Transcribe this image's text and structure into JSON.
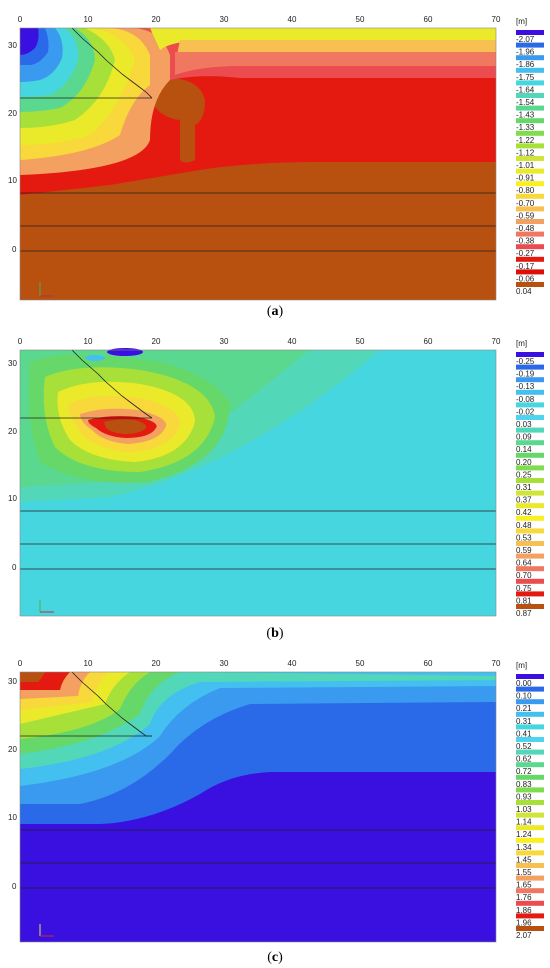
{
  "x_ticks": [
    "0",
    "10",
    "20",
    "30",
    "40",
    "50",
    "60",
    "70"
  ],
  "y_ticks": [
    "30",
    "20",
    "10",
    "0"
  ],
  "legend_unit": "[m]",
  "panels": [
    {
      "id": "a",
      "caption": "a",
      "legend_values": [
        "-2.07",
        "-1.96",
        "-1.86",
        "-1.75",
        "-1.64",
        "-1.54",
        "-1.43",
        "-1.33",
        "-1.22",
        "-1.12",
        "-1.01",
        "-0.91",
        "-0.80",
        "-0.70",
        "-0.59",
        "-0.48",
        "-0.38",
        "-0.27",
        "-0.17",
        "-0.06",
        "0.04"
      ],
      "colors": [
        "#3a10e0",
        "#2a6ae8",
        "#3a9af0",
        "#44c0f0",
        "#46d6e0",
        "#52d8b8",
        "#5ad890",
        "#66d86a",
        "#7edc4e",
        "#a8e03a",
        "#d0e43a",
        "#eaea2a",
        "#f8f020",
        "#f8d83a",
        "#f8c050",
        "#f4a060",
        "#f07860",
        "#ec4c50",
        "#e41a10",
        "#dc0e08",
        "#b85010"
      ]
    },
    {
      "id": "b",
      "caption": "b",
      "legend_values": [
        "-0.25",
        "-0.19",
        "-0.13",
        "-0.08",
        "-0.02",
        "0.03",
        "0.09",
        "0.14",
        "0.20",
        "0.25",
        "0.31",
        "0.37",
        "0.42",
        "0.48",
        "0.53",
        "0.59",
        "0.64",
        "0.70",
        "0.75",
        "0.81",
        "0.87"
      ],
      "colors": [
        "#3a10e0",
        "#2a6ae8",
        "#3a9af0",
        "#44c0f0",
        "#46d6e0",
        "#4cd4f0",
        "#52d8b8",
        "#5ad890",
        "#66d86a",
        "#7edc4e",
        "#a8e03a",
        "#d0e43a",
        "#eaea2a",
        "#f8f020",
        "#f8d83a",
        "#f8c050",
        "#f4a060",
        "#f07860",
        "#ec4c50",
        "#e41a10",
        "#b85010"
      ]
    },
    {
      "id": "c",
      "caption": "c",
      "legend_values": [
        "0.00",
        "0.10",
        "0.21",
        "0.31",
        "0.41",
        "0.52",
        "0.62",
        "0.72",
        "0.83",
        "0.93",
        "1.03",
        "1.14",
        "1.24",
        "1.34",
        "1.45",
        "1.55",
        "1.65",
        "1.76",
        "1.86",
        "1.96",
        "2.07"
      ],
      "colors": [
        "#3a10e0",
        "#2a6ae8",
        "#3a9af0",
        "#44c0f0",
        "#46d6e0",
        "#4cd4f0",
        "#52d8b8",
        "#5ad890",
        "#66d86a",
        "#7edc4e",
        "#a8e03a",
        "#d0e43a",
        "#eaea2a",
        "#f8f020",
        "#f8d83a",
        "#f8c050",
        "#f4a060",
        "#f07860",
        "#ec4c50",
        "#e41a10",
        "#b85010"
      ]
    }
  ]
}
